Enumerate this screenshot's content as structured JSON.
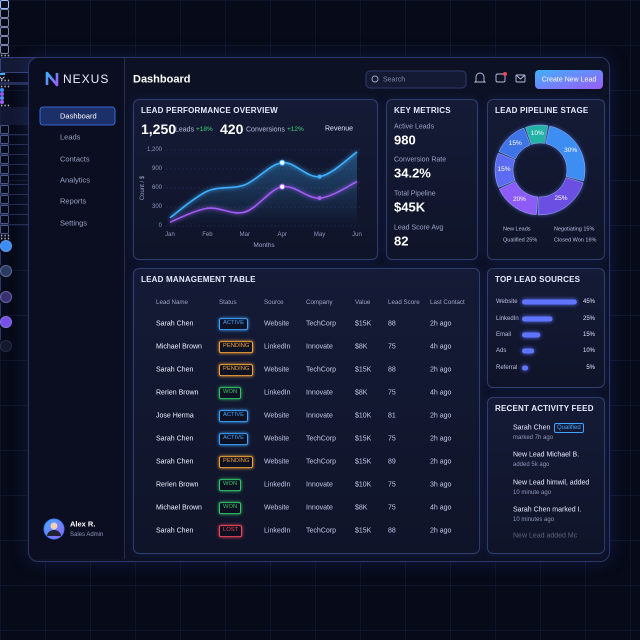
{
  "sidebar": {
    "brand": "NEXUS",
    "nav": [
      "Dashboard",
      "Leads",
      "Contacts",
      "Analytics",
      "Reports",
      "Settings"
    ],
    "user": {
      "name": "Alex R.",
      "role": "Sales Admin"
    }
  },
  "header": {
    "title": "Dashboard",
    "search_placeholder": "Search",
    "button": "Create New Lead"
  },
  "performance": {
    "title": "LEAD PERFORMANCE OVERVIEW",
    "leads": "1,250",
    "leads_label": "Leads",
    "leads_change": "+18%",
    "conversions": "420",
    "conversions_label": "Conversions",
    "conversions_change": "+12%",
    "dropdown": "Revenue",
    "chart_data": {
      "type": "line",
      "x_label": "Months",
      "y_label": "Count / $",
      "categories": [
        "Jan",
        "Feb",
        "Mar",
        "Apr",
        "May",
        "Jun"
      ],
      "ylim": [
        0,
        1200
      ],
      "yticks": [
        0,
        300,
        600,
        900,
        {
          "value": 1200,
          "label": "1,200"
        }
      ],
      "grid": true,
      "series": [
        {
          "color": "#3fb0ff",
          "values": [
            130,
            550,
            650,
            1000,
            780,
            1170
          ]
        },
        {
          "color": "#a35cf6",
          "values": [
            60,
            280,
            220,
            620,
            440,
            700
          ]
        }
      ]
    }
  },
  "metrics": {
    "title": "KEY METRICS",
    "items": [
      {
        "label": "Active Leads",
        "value": "980"
      },
      {
        "label": "Conversion Rate",
        "value": "34.2%"
      },
      {
        "label": "Total Pipeline",
        "value": "$45K"
      },
      {
        "label": "Lead Score Avg",
        "value": "82"
      }
    ]
  },
  "pipeline": {
    "title": "LEAD PIPELINE STAGE",
    "chart_data": {
      "type": "pie",
      "values": [
        10,
        30,
        25,
        20,
        15,
        15
      ],
      "value_labels": [
        "10%",
        "30%",
        "25%",
        "20%",
        "15%",
        "15%"
      ],
      "colors": [
        "#22b3a6",
        "#3d8ef2",
        "#6b4fe3",
        "#8d5cf6",
        "#5c6cf2",
        "#3e74e6"
      ]
    },
    "legend": [
      "New Leads",
      "Negotiating 15%",
      "Qualified 25%",
      "Closed Won 16%"
    ],
    "legend_colors": [
      "#3d8ef2",
      "#8d5cf6",
      "#5c8cf2",
      "#a35cf6"
    ]
  },
  "table": {
    "title": "LEAD MANAGEMENT TABLE",
    "headers": [
      "Lead Name",
      "Status",
      "Source",
      "Company",
      "Value",
      "Lead Score",
      "Last Contact"
    ],
    "rows": [
      {
        "name": "Sarah Chen",
        "status": "ACTIVE",
        "status_color": "#3fa4ff",
        "source": "Website",
        "company": "TechCorp",
        "value": "$15K",
        "score": "88",
        "last_contact": "2h ago"
      },
      {
        "name": "Michael Brown",
        "status": "PENDING",
        "status_color": "#f0a23a",
        "source": "LinkedIn",
        "company": "Innovate",
        "value": "$8K",
        "score": "75",
        "last_contact": "4h ago"
      },
      {
        "name": "Sarah Chen",
        "status": "PENDING",
        "status_color": "#f0a23a",
        "source": "Website",
        "company": "TechCorp",
        "value": "$15K",
        "score": "88",
        "last_contact": "2h ago"
      },
      {
        "name": "Rerien Brown",
        "status": "WON",
        "status_color": "#35c46a",
        "source": "LinkedIn",
        "company": "Innovate",
        "value": "$8K",
        "score": "75",
        "last_contact": "4h ago"
      },
      {
        "name": "Jose Herma",
        "status": "ACTIVE",
        "status_color": "#3fa4ff",
        "source": "Website",
        "company": "Innovate",
        "value": "$10K",
        "score": "81",
        "last_contact": "2h ago"
      },
      {
        "name": "Sarah Chen",
        "status": "ACTIVE",
        "status_color": "#3fa4ff",
        "source": "Website",
        "company": "TechCorp",
        "value": "$15K",
        "score": "75",
        "last_contact": "2h ago"
      },
      {
        "name": "Sarah Chen",
        "status": "PENDING",
        "status_color": "#f0a23a",
        "source": "Website",
        "company": "TechCorp",
        "value": "$15K",
        "score": "89",
        "last_contact": "2h ago"
      },
      {
        "name": "Rerien Brown",
        "status": "WON",
        "status_color": "#35c46a",
        "source": "LinkedIn",
        "company": "Innovate",
        "value": "$10K",
        "score": "75",
        "last_contact": "3h ago"
      },
      {
        "name": "Michael Brown",
        "status": "WON",
        "status_color": "#35c46a",
        "source": "Website",
        "company": "Innovate",
        "value": "$8K",
        "score": "75",
        "last_contact": "4h ago"
      },
      {
        "name": "Sarah Chen",
        "status": "LOST",
        "status_color": "#f0455a",
        "source": "LinkedIn",
        "company": "TechCorp",
        "value": "$15K",
        "score": "88",
        "last_contact": "2h ago"
      }
    ]
  },
  "sources": {
    "title": "TOP LEAD SOURCES",
    "chart_data": {
      "type": "bar",
      "categories": [
        "Website",
        "LinkedIn",
        "Email",
        "Ads",
        "Referral"
      ],
      "values": [
        45,
        25,
        15,
        10,
        5
      ],
      "value_labels": [
        "45%",
        "25%",
        "15%",
        "10%",
        "5%"
      ],
      "color": "#5f74ff"
    }
  },
  "activity": {
    "title": "RECENT ACTIVITY FEED",
    "items": [
      {
        "title": "Sarah Chen",
        "badge": "Qualified",
        "time": "marked 7h ago",
        "icon_color": "#3d8ef2"
      },
      {
        "title": "New Lead Michael B.",
        "time": "added 5k ago",
        "icon_color": "#2a3a5c"
      },
      {
        "title": "New Lead himwil, added",
        "time": "10 minute ago",
        "icon_color": "#3a2f6e"
      },
      {
        "title": "Sarah Chen marked I.",
        "time": "10 minutes ago",
        "icon_color": "#7a4fe8"
      },
      {
        "title": "New Lead added Mc",
        "icon_color": "#2a3350"
      }
    ]
  }
}
